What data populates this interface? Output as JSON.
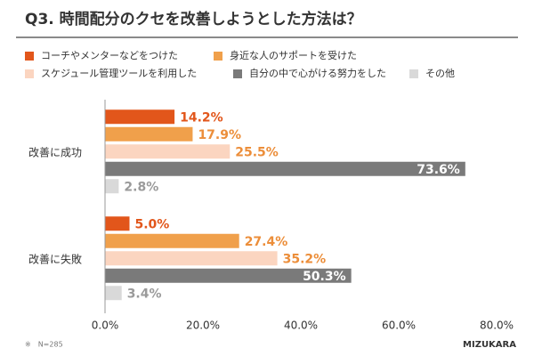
{
  "chart_data": {
    "type": "hbar_grouped",
    "title": "Q3. 時間配分のクセを改善しようとした方法は？",
    "categories": [
      "改善に成功",
      "改善に失敗"
    ],
    "series": [
      {
        "name": "コーチやメンターなどをつけた",
        "color": "#e2561b",
        "values": [
          14.2,
          5.0
        ],
        "value_labels": [
          "14.2%",
          "5.0%"
        ]
      },
      {
        "name": "身近な人のサポートを受けた",
        "color": "#f0a04b",
        "values": [
          17.9,
          27.4
        ],
        "value_labels": [
          "17.9%",
          "27.4%"
        ]
      },
      {
        "name": "スケジュール管理ツールを利用した",
        "color": "#fbd5c0",
        "values": [
          25.5,
          35.2
        ],
        "value_labels": [
          "25.5%",
          "35.2%"
        ]
      },
      {
        "name": "自分の中で心がける努力をした",
        "color": "#7a7a7a",
        "values": [
          73.6,
          50.3
        ],
        "value_labels": [
          "73.6%",
          "50.3%"
        ]
      },
      {
        "name": "その他",
        "color": "#d9d9d9",
        "values": [
          2.8,
          3.4
        ],
        "value_labels": [
          "2.8%",
          "3.4%"
        ]
      }
    ],
    "xlim": [
      0,
      80
    ],
    "xticks": [
      {
        "value": 0,
        "label": "0.0%"
      },
      {
        "value": 20,
        "label": "20.0%"
      },
      {
        "value": 40,
        "label": "40.0%"
      },
      {
        "value": 60,
        "label": "60.0%"
      },
      {
        "value": 80,
        "label": "80.0%"
      }
    ],
    "footer_note": "※　N=285",
    "logo": "MIZUKARA"
  }
}
